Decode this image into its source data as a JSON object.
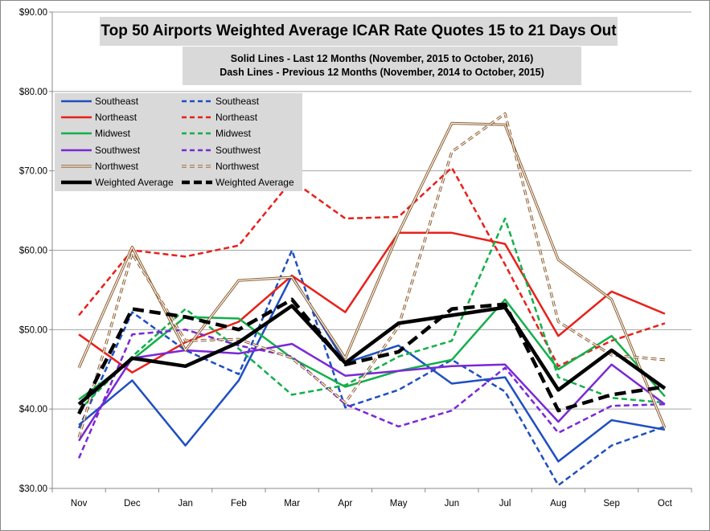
{
  "title": "Top 50 Airports Weighted Average ICAR Rate Quotes 15 to 21 Days Out",
  "subtitle_line1": "Solid Lines - Last 12 Months  (November, 2015 to October, 2016)",
  "subtitle_line2": "Dash Lines - Previous 12 Months (November, 2014 to October, 2015)",
  "chart_data": {
    "type": "line",
    "title": "Top 50 Airports Weighted Average ICAR Rate Quotes 15 to 21 Days Out",
    "categories": [
      "Nov",
      "Dec",
      "Jan",
      "Feb",
      "Mar",
      "Apr",
      "May",
      "Jun",
      "Jul",
      "Aug",
      "Sep",
      "Oct"
    ],
    "ylim": [
      30,
      90
    ],
    "yticks": [
      "$30.00",
      "$40.00",
      "$50.00",
      "$60.00",
      "$70.00",
      "$80.00",
      "$90.00"
    ],
    "grid": true,
    "legend_position": "top-left",
    "series": [
      {
        "name": "Southeast",
        "style": "solid",
        "color": "#1f4fc1",
        "width": 2.5,
        "double": false,
        "values": [
          38.0,
          43.6,
          35.4,
          43.6,
          56.8,
          45.8,
          48.0,
          43.2,
          44.0,
          33.4,
          38.6,
          37.4
        ]
      },
      {
        "name": "Southeast",
        "style": "dashed",
        "color": "#1f4fc1",
        "width": 2.5,
        "double": false,
        "values": [
          37.6,
          52.2,
          47.4,
          44.4,
          60.0,
          40.2,
          42.4,
          46.2,
          42.2,
          30.4,
          35.4,
          37.8
        ]
      },
      {
        "name": "Northeast",
        "style": "solid",
        "color": "#e8201a",
        "width": 2.5,
        "double": false,
        "values": [
          49.4,
          44.6,
          48.4,
          51.0,
          56.8,
          52.2,
          62.2,
          62.2,
          60.8,
          49.2,
          54.8,
          52.0
        ]
      },
      {
        "name": "Northeast",
        "style": "dashed",
        "color": "#e8201a",
        "width": 2.5,
        "double": false,
        "values": [
          51.8,
          60.0,
          59.2,
          60.6,
          68.8,
          64.0,
          64.2,
          70.4,
          58.2,
          45.4,
          48.6,
          50.8
        ]
      },
      {
        "name": "Midwest",
        "style": "solid",
        "color": "#12b04a",
        "width": 2.5,
        "double": false,
        "values": [
          41.2,
          46.2,
          51.6,
          51.4,
          46.4,
          42.8,
          44.8,
          46.2,
          53.8,
          45.0,
          49.2,
          41.6
        ]
      },
      {
        "name": "Midwest",
        "style": "dashed",
        "color": "#12b04a",
        "width": 2.5,
        "double": false,
        "values": [
          39.8,
          46.6,
          52.6,
          47.6,
          41.8,
          43.0,
          46.6,
          48.6,
          64.0,
          44.0,
          41.4,
          40.8
        ]
      },
      {
        "name": "Southwest",
        "style": "solid",
        "color": "#7a28d6",
        "width": 2.5,
        "double": false,
        "values": [
          36.0,
          46.4,
          47.4,
          47.0,
          48.2,
          44.2,
          44.8,
          45.4,
          45.6,
          38.4,
          45.6,
          40.6
        ]
      },
      {
        "name": "Southwest",
        "style": "dashed",
        "color": "#7a28d6",
        "width": 2.5,
        "double": false,
        "values": [
          33.8,
          49.4,
          50.0,
          48.0,
          46.6,
          40.6,
          37.8,
          39.8,
          45.2,
          37.0,
          40.4,
          40.6
        ]
      },
      {
        "name": "Northwest",
        "style": "solid",
        "color": "#8b5a2b",
        "width": 1.2,
        "double": true,
        "values": [
          45.2,
          60.4,
          47.4,
          56.2,
          56.6,
          46.4,
          62.2,
          76.0,
          75.8,
          58.8,
          53.8,
          37.6
        ]
      },
      {
        "name": "Northwest",
        "style": "dashed",
        "color": "#8b5a2b",
        "width": 1.2,
        "double": true,
        "values": [
          36.4,
          59.6,
          48.6,
          48.8,
          46.4,
          40.8,
          50.4,
          72.4,
          77.2,
          51.0,
          46.8,
          46.2
        ]
      },
      {
        "name": "Weighted Average",
        "style": "solid",
        "color": "#000000",
        "width": 4.5,
        "double": false,
        "values": [
          40.6,
          46.4,
          45.4,
          48.4,
          53.0,
          45.8,
          50.8,
          51.8,
          52.8,
          42.4,
          47.4,
          42.6
        ]
      },
      {
        "name": "Weighted Average",
        "style": "dashed",
        "color": "#000000",
        "width": 4.5,
        "double": false,
        "values": [
          39.4,
          52.6,
          51.6,
          50.0,
          53.8,
          45.6,
          47.2,
          52.6,
          53.2,
          39.8,
          41.8,
          42.8
        ]
      }
    ]
  }
}
